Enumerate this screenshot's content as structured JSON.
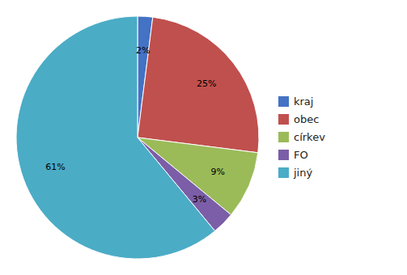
{
  "chart_data": {
    "type": "pie",
    "categories": [
      "kraj",
      "obec",
      "církev",
      "FO",
      "jiný"
    ],
    "values": [
      2,
      25,
      9,
      3,
      61
    ],
    "value_labels": [
      "2%",
      "25%",
      "9%",
      "3%",
      "61%"
    ],
    "colors": [
      "#4472C4",
      "#C0504D",
      "#9BBB59",
      "#7B5EA7",
      "#4BACC6"
    ],
    "data_labels": true,
    "legend": "right"
  }
}
